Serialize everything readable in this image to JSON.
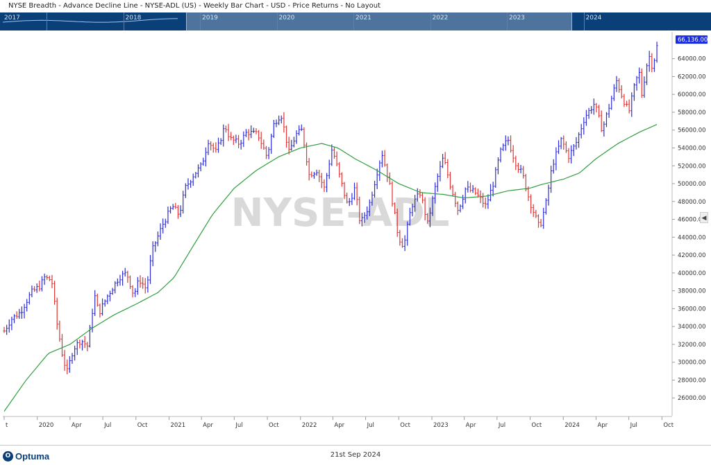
{
  "window": {
    "title": "NYSE Breadth - Advance Decline Line - NYSE-ADL (US) - Weekly Bar Chart - USD - Price Returns - No Layout"
  },
  "navigator": {
    "years": [
      "2017",
      "2018",
      "2019",
      "2020",
      "2021",
      "2022",
      "2023",
      "2024"
    ]
  },
  "colors": {
    "up_bar": "#2b2bd6",
    "down_bar": "#e03333",
    "moving_average": "#2f9e3f",
    "navigator_bg": "#0b3f78",
    "last_price_label": "#1a2ee0"
  },
  "watermark": "NYSE-ADL",
  "footer": {
    "logo_text": "Optuma",
    "date": "21st Sep 2024"
  },
  "chart_data": {
    "type": "bar",
    "x_range": [
      "2019-10-01",
      "2024-10-10"
    ],
    "ylim": [
      24000,
      67000
    ],
    "grid": false,
    "last_price_label": "66,136.00",
    "y_ticks": [
      {
        "value": 26000,
        "label": "26000.00"
      },
      {
        "value": 28000,
        "label": "28000.00"
      },
      {
        "value": 30000,
        "label": "30000.00"
      },
      {
        "value": 32000,
        "label": "32000.00"
      },
      {
        "value": 34000,
        "label": "34000.00"
      },
      {
        "value": 36000,
        "label": "36000.00"
      },
      {
        "value": 38000,
        "label": "38000.00"
      },
      {
        "value": 40000,
        "label": "40000.00"
      },
      {
        "value": 42000,
        "label": "42000.00"
      },
      {
        "value": 44000,
        "label": "44000.00"
      },
      {
        "value": 46000,
        "label": "46000.00"
      },
      {
        "value": 48000,
        "label": "48000.00"
      },
      {
        "value": 50000,
        "label": "50000.00"
      },
      {
        "value": 52000,
        "label": "52000.00"
      },
      {
        "value": 54000,
        "label": "54000.00"
      },
      {
        "value": 56000,
        "label": "56000.00"
      },
      {
        "value": 58000,
        "label": "58000.00"
      },
      {
        "value": 60000,
        "label": "60000.00"
      },
      {
        "value": 62000,
        "label": "62000.00"
      },
      {
        "value": 64000,
        "label": "64000.00"
      }
    ],
    "x_ticks": [
      {
        "date": "2019-10-01",
        "label": "t"
      },
      {
        "date": "2020-01-01",
        "label": "2020"
      },
      {
        "date": "2020-04-01",
        "label": "Apr"
      },
      {
        "date": "2020-07-01",
        "label": "Jul"
      },
      {
        "date": "2020-10-01",
        "label": "Oct"
      },
      {
        "date": "2021-01-01",
        "label": "2021"
      },
      {
        "date": "2021-04-01",
        "label": "Apr"
      },
      {
        "date": "2021-07-01",
        "label": "Jul"
      },
      {
        "date": "2021-10-01",
        "label": "Oct"
      },
      {
        "date": "2022-01-01",
        "label": "2022"
      },
      {
        "date": "2022-04-01",
        "label": "Apr"
      },
      {
        "date": "2022-07-01",
        "label": "Jul"
      },
      {
        "date": "2022-10-01",
        "label": "Oct"
      },
      {
        "date": "2023-01-01",
        "label": "2023"
      },
      {
        "date": "2023-04-01",
        "label": "Apr"
      },
      {
        "date": "2023-07-01",
        "label": "Jul"
      },
      {
        "date": "2023-10-01",
        "label": "Oct"
      },
      {
        "date": "2024-01-01",
        "label": "2024"
      },
      {
        "date": "2024-04-01",
        "label": "Apr"
      },
      {
        "date": "2024-07-01",
        "label": "Jul"
      },
      {
        "date": "2024-10-01",
        "label": "Oct"
      }
    ],
    "close_anchors": [
      [
        "2019-10-01",
        33500
      ],
      [
        "2019-10-20",
        34800
      ],
      [
        "2019-11-15",
        35600
      ],
      [
        "2019-12-15",
        37800
      ],
      [
        "2020-01-10",
        38600
      ],
      [
        "2020-01-20",
        39500
      ],
      [
        "2020-02-10",
        39200
      ],
      [
        "2020-02-24",
        34500
      ],
      [
        "2020-03-10",
        31000
      ],
      [
        "2020-03-23",
        28800
      ],
      [
        "2020-04-10",
        31500
      ],
      [
        "2020-05-01",
        32500
      ],
      [
        "2020-05-20",
        31800
      ],
      [
        "2020-06-08",
        37500
      ],
      [
        "2020-06-20",
        35500
      ],
      [
        "2020-07-15",
        37500
      ],
      [
        "2020-08-15",
        39500
      ],
      [
        "2020-09-05",
        40000
      ],
      [
        "2020-09-25",
        37500
      ],
      [
        "2020-10-10",
        39300
      ],
      [
        "2020-10-30",
        38200
      ],
      [
        "2020-11-15",
        42500
      ],
      [
        "2020-12-15",
        45500
      ],
      [
        "2021-01-10",
        47500
      ],
      [
        "2021-01-29",
        46500
      ],
      [
        "2021-02-15",
        49500
      ],
      [
        "2021-03-10",
        51000
      ],
      [
        "2021-04-01",
        52000
      ],
      [
        "2021-04-20",
        54800
      ],
      [
        "2021-05-12",
        53500
      ],
      [
        "2021-06-05",
        56500
      ],
      [
        "2021-06-20",
        55000
      ],
      [
        "2021-07-15",
        54500
      ],
      [
        "2021-08-05",
        55800
      ],
      [
        "2021-09-05",
        55500
      ],
      [
        "2021-09-30",
        53000
      ],
      [
        "2021-10-20",
        56800
      ],
      [
        "2021-11-08",
        57800
      ],
      [
        "2021-11-30",
        53500
      ],
      [
        "2021-12-20",
        55500
      ],
      [
        "2022-01-05",
        56000
      ],
      [
        "2022-01-25",
        51000
      ],
      [
        "2022-02-15",
        51500
      ],
      [
        "2022-03-08",
        49500
      ],
      [
        "2022-03-30",
        54000
      ],
      [
        "2022-04-25",
        50000
      ],
      [
        "2022-05-12",
        47500
      ],
      [
        "2022-06-01",
        49500
      ],
      [
        "2022-06-16",
        45500
      ],
      [
        "2022-07-10",
        47500
      ],
      [
        "2022-08-15",
        53500
      ],
      [
        "2022-09-05",
        50000
      ],
      [
        "2022-09-30",
        44000
      ],
      [
        "2022-10-15",
        43000
      ],
      [
        "2022-11-05",
        47500
      ],
      [
        "2022-11-30",
        49000
      ],
      [
        "2022-12-20",
        45500
      ],
      [
        "2023-01-15",
        50500
      ],
      [
        "2023-02-02",
        53000
      ],
      [
        "2023-02-20",
        50000
      ],
      [
        "2023-03-15",
        47000
      ],
      [
        "2023-04-05",
        49500
      ],
      [
        "2023-05-01",
        49000
      ],
      [
        "2023-05-31",
        47500
      ],
      [
        "2023-06-20",
        50000
      ],
      [
        "2023-07-10",
        53500
      ],
      [
        "2023-07-31",
        55000
      ],
      [
        "2023-08-20",
        52500
      ],
      [
        "2023-09-10",
        51000
      ],
      [
        "2023-09-30",
        48000
      ],
      [
        "2023-10-27",
        45000
      ],
      [
        "2023-11-15",
        48000
      ],
      [
        "2023-12-01",
        52000
      ],
      [
        "2023-12-27",
        55000
      ],
      [
        "2024-01-15",
        53000
      ],
      [
        "2024-02-05",
        54500
      ],
      [
        "2024-03-01",
        57500
      ],
      [
        "2024-03-28",
        59000
      ],
      [
        "2024-04-18",
        56000
      ],
      [
        "2024-05-10",
        59000
      ],
      [
        "2024-05-28",
        61500
      ],
      [
        "2024-06-15",
        59500
      ],
      [
        "2024-07-01",
        58000
      ],
      [
        "2024-07-20",
        61500
      ],
      [
        "2024-08-01",
        62500
      ],
      [
        "2024-08-06",
        60000
      ],
      [
        "2024-08-25",
        64500
      ],
      [
        "2024-09-05",
        63000
      ],
      [
        "2024-09-21",
        66136
      ]
    ],
    "moving_average": [
      [
        "2019-10-01",
        24500
      ],
      [
        "2019-12-01",
        28000
      ],
      [
        "2020-02-01",
        31000
      ],
      [
        "2020-04-01",
        32000
      ],
      [
        "2020-06-01",
        33800
      ],
      [
        "2020-08-01",
        35300
      ],
      [
        "2020-10-01",
        36500
      ],
      [
        "2020-12-01",
        37800
      ],
      [
        "2021-01-15",
        39500
      ],
      [
        "2021-03-01",
        42500
      ],
      [
        "2021-05-01",
        46500
      ],
      [
        "2021-07-01",
        49500
      ],
      [
        "2021-09-01",
        51500
      ],
      [
        "2021-11-01",
        53000
      ],
      [
        "2022-01-01",
        54000
      ],
      [
        "2022-03-01",
        54500
      ],
      [
        "2022-04-15",
        54000
      ],
      [
        "2022-06-01",
        52800
      ],
      [
        "2022-08-01",
        51500
      ],
      [
        "2022-10-01",
        50000
      ],
      [
        "2022-12-01",
        49000
      ],
      [
        "2023-02-01",
        48800
      ],
      [
        "2023-04-01",
        48400
      ],
      [
        "2023-06-01",
        48600
      ],
      [
        "2023-08-01",
        49200
      ],
      [
        "2023-10-01",
        49500
      ],
      [
        "2023-11-01",
        49900
      ],
      [
        "2024-01-01",
        50500
      ],
      [
        "2024-02-15",
        51200
      ],
      [
        "2024-04-01",
        52800
      ],
      [
        "2024-06-01",
        54500
      ],
      [
        "2024-08-01",
        55800
      ],
      [
        "2024-09-21",
        56700
      ]
    ]
  }
}
